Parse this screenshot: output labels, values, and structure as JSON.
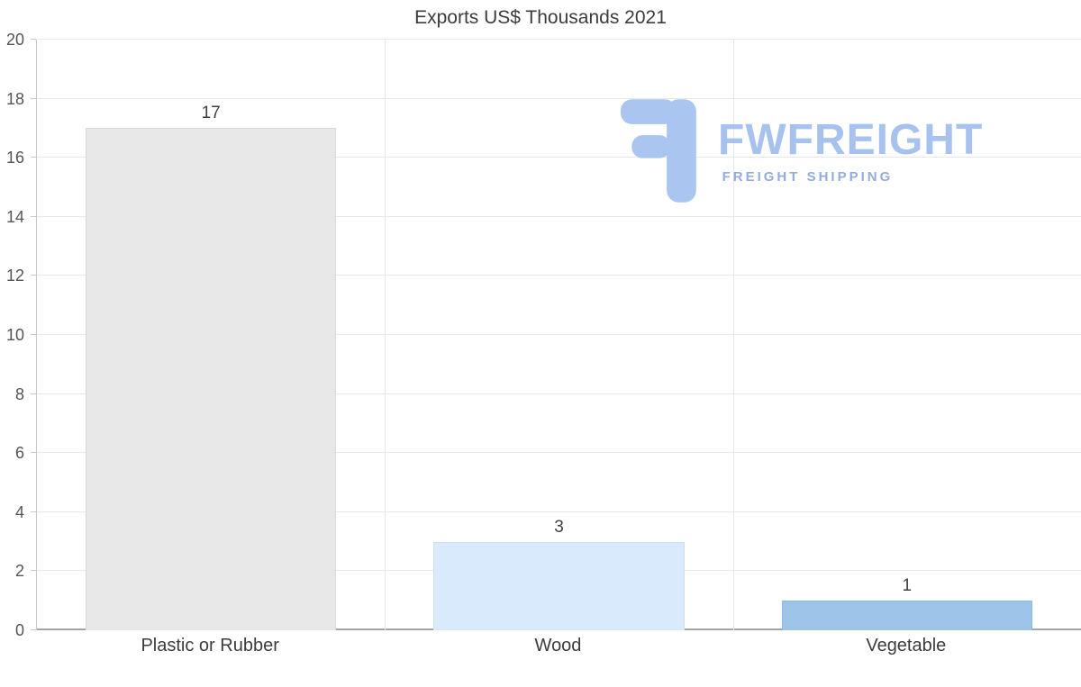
{
  "chart_data": {
    "type": "bar",
    "title": "Exports US$ Thousands 2021",
    "categories": [
      "Plastic or Rubber",
      "Wood",
      "Vegetable"
    ],
    "values": [
      17,
      3,
      1
    ],
    "value_labels": [
      "17",
      "3",
      "1"
    ],
    "xlabel": "",
    "ylabel": "",
    "ylim": [
      0,
      20
    ],
    "yticks": [
      0,
      2,
      4,
      6,
      8,
      10,
      12,
      14,
      16,
      18,
      20
    ],
    "grid": "horizontal gridlines at each y tick, vertical separators between categories",
    "legend": "none",
    "bar_colors": [
      "#e8e8e8",
      "#d9eafc",
      "#9cc5e9"
    ],
    "bar_border_colors": [
      "#d9d9d9",
      "#cbe0f4",
      "#8fb9e0"
    ],
    "gridline_color": "#e8e8e8",
    "axis_color": "#a5a5a5"
  },
  "watermark": {
    "text": "FWFREIGHT",
    "subtext": "FREIGHT SHIPPING",
    "text_color": "#a7c2ee",
    "subtext_color": "#93abdd",
    "icon_color": "#a9c5f0"
  }
}
